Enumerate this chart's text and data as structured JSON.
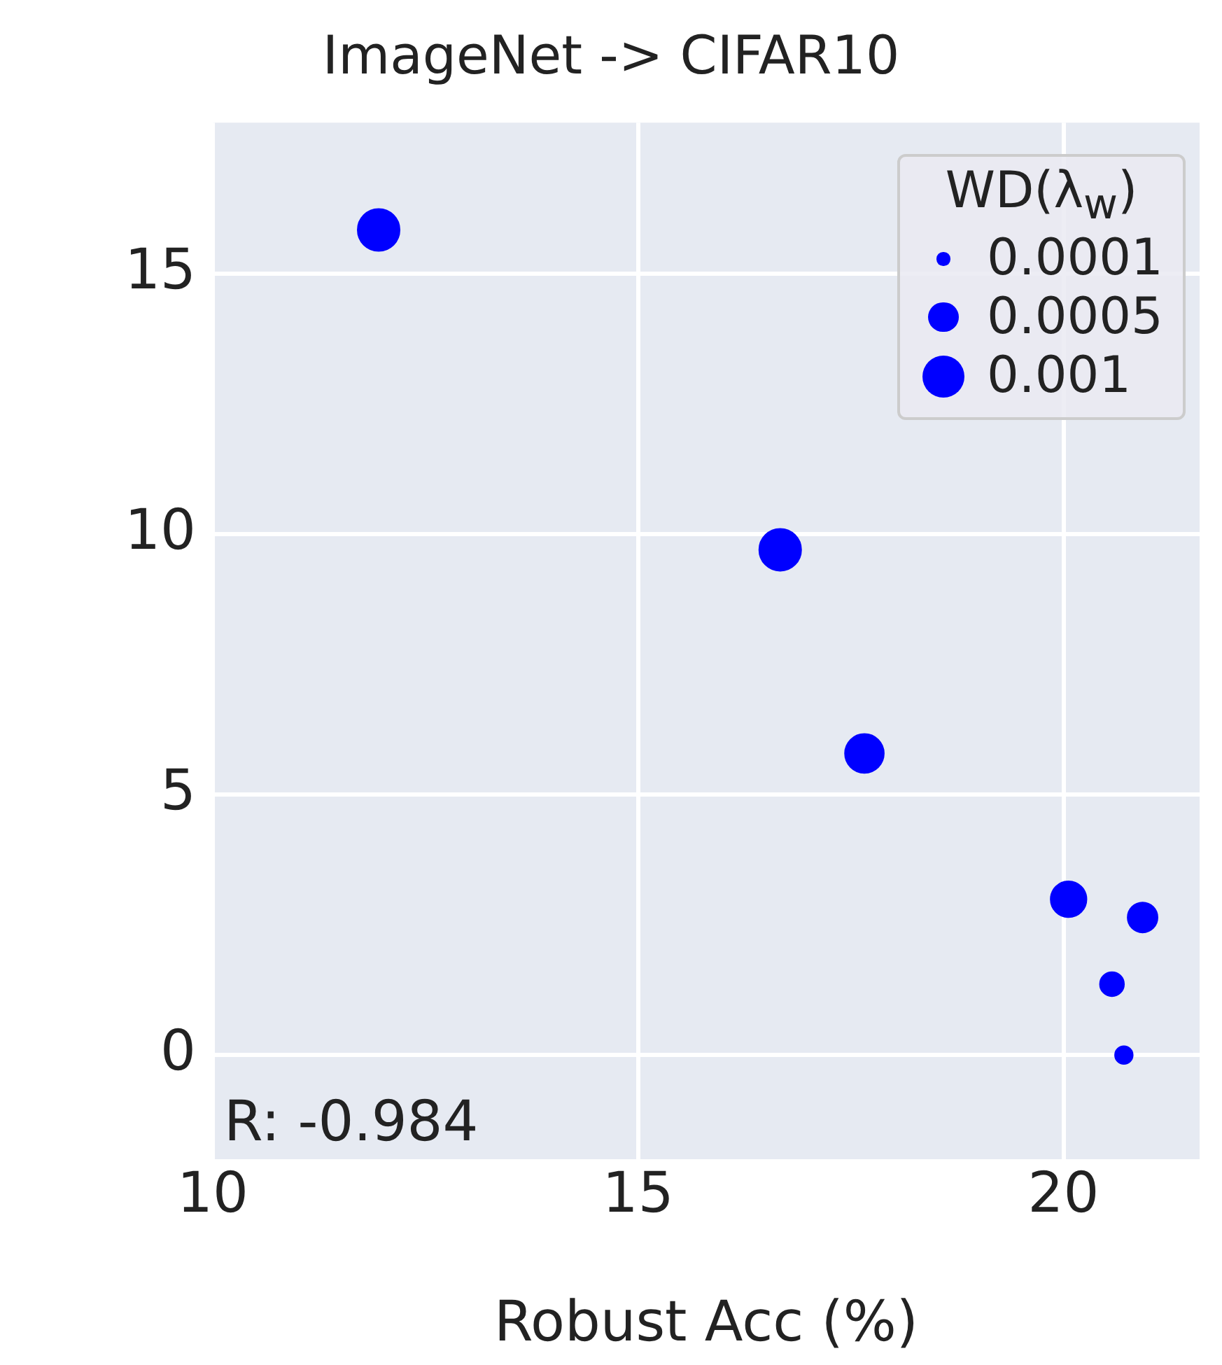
{
  "chart_data": {
    "type": "bubble",
    "title": "ImageNet -> CIFAR10",
    "xlabel": "Robust Acc (%)",
    "legend_title": "WD(λ$_{w}$)",
    "x": [
      11.95,
      16.67,
      17.66,
      20.06,
      20.93,
      20.57,
      20.71
    ],
    "series": [
      {
        "color": "#0000ff",
        "values": [
          15.84,
          9.7,
          5.79,
          2.99,
          2.64,
          1.36,
          0.0
        ],
        "sizes": [
          0.001,
          0.001,
          0.00086,
          0.00073,
          0.00051,
          0.00033,
          0.00018
        ]
      }
    ],
    "size_legend": [
      0.0001,
      0.0005,
      0.001
    ],
    "xlim": [
      10,
      21.6
    ],
    "xticks": [
      10,
      15,
      20
    ],
    "ylim": [
      -2,
      17.9
    ],
    "yticks": [
      0,
      5,
      10,
      15
    ],
    "grid": true,
    "annotations": [
      "R: -0.984"
    ]
  }
}
